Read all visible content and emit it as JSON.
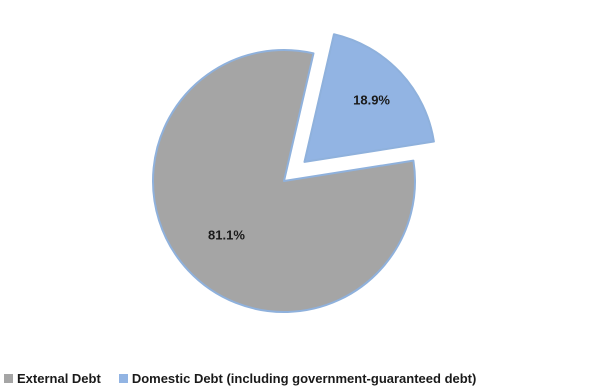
{
  "chart_data": {
    "type": "pie",
    "slices": [
      {
        "label": "External Debt",
        "value": 81.1,
        "value_label": "81.1%",
        "color": "#a5a5a5",
        "exploded": false
      },
      {
        "label": "Domestic Debt (including government-guaranteed debt)",
        "value": 18.9,
        "value_label": "18.9%",
        "color": "#92b4e3",
        "exploded": true
      }
    ],
    "border_color": "#8fb1dc",
    "legend_position": "bottom-left"
  }
}
